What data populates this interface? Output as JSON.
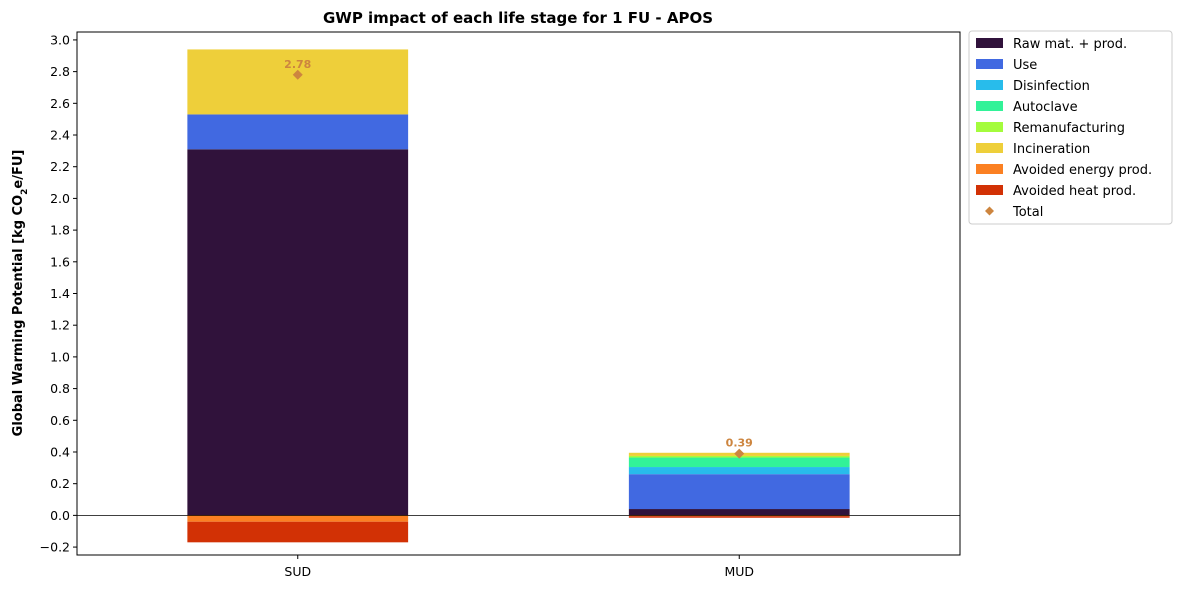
{
  "chart_data": {
    "type": "bar",
    "stacked": true,
    "title": "GWP impact of each life stage for 1 FU - APOS",
    "ylabel_prefix": "Global Warming Potential [kg CO",
    "ylabel_sub": "2",
    "ylabel_suffix": "e/FU]",
    "ylim": [
      -0.25,
      3.05
    ],
    "yticks": [
      -0.2,
      0.0,
      0.2,
      0.4,
      0.6,
      0.8,
      1.0,
      1.2,
      1.4,
      1.6,
      1.8,
      2.0,
      2.2,
      2.4,
      2.6,
      2.8,
      3.0
    ],
    "ytick_labels": [
      "−0.2",
      "0.0",
      "0.2",
      "0.4",
      "0.6",
      "0.8",
      "1.0",
      "1.2",
      "1.4",
      "1.6",
      "1.8",
      "2.0",
      "2.2",
      "2.4",
      "2.6",
      "2.8",
      "3.0"
    ],
    "categories": [
      "SUD",
      "MUD"
    ],
    "series": [
      {
        "name": "Raw mat. + prod.",
        "color": "#30123b",
        "values": [
          2.31,
          0.04
        ]
      },
      {
        "name": "Use",
        "color": "#4169e1",
        "values": [
          0.22,
          0.22
        ]
      },
      {
        "name": "Disinfection",
        "color": "#28bceb",
        "values": [
          0.0,
          0.045
        ]
      },
      {
        "name": "Autoclave",
        "color": "#32f298",
        "values": [
          0.0,
          0.06
        ]
      },
      {
        "name": "Remanufacturing",
        "color": "#a4fc3c",
        "values": [
          0.0,
          0.01
        ]
      },
      {
        "name": "Incineration",
        "color": "#eecf3a",
        "values": [
          0.41,
          0.02
        ]
      },
      {
        "name": "Avoided energy prod.",
        "color": "#fb8022",
        "values": [
          -0.04,
          -0.005
        ]
      },
      {
        "name": "Avoided heat prod.",
        "color": "#d23105",
        "values": [
          -0.13,
          -0.01
        ]
      }
    ],
    "totals": {
      "name": "Total",
      "color": "#cd853f",
      "values": [
        2.78,
        0.39
      ],
      "labels": [
        "2.78",
        "0.39"
      ]
    },
    "legend_position": "outside-top-right",
    "grid": false
  }
}
